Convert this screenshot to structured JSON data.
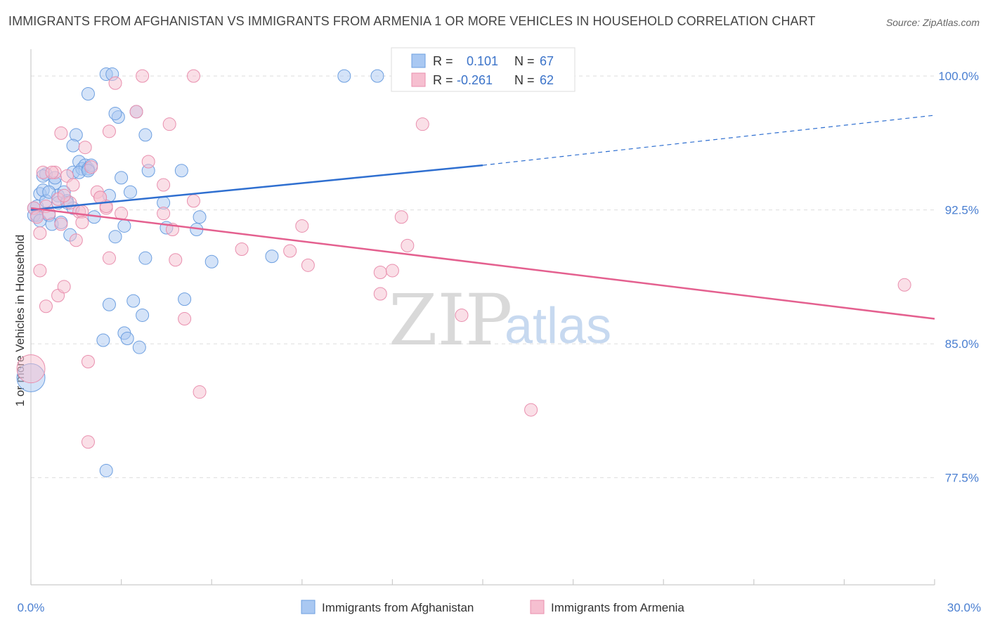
{
  "title": "IMMIGRANTS FROM AFGHANISTAN VS IMMIGRANTS FROM ARMENIA 1 OR MORE VEHICLES IN HOUSEHOLD CORRELATION CHART",
  "source": "Source: ZipAtlas.com",
  "watermark": {
    "zip": "ZIP",
    "atlas": "atlas"
  },
  "colors": {
    "blue_fill": "#a9c8f2",
    "blue_stroke": "#6d9fe0",
    "blue_line": "#2f6fd0",
    "pink_fill": "#f6bfd0",
    "pink_stroke": "#e98fae",
    "pink_line": "#e4608f",
    "grid": "#dddddd",
    "tick_text": "#4a7fd1"
  },
  "stats": [
    {
      "r_label": "R =",
      "r_value": "0.101",
      "n_label": "N =",
      "n_value": "67"
    },
    {
      "r_label": "R =",
      "r_value": "-0.261",
      "n_label": "N =",
      "n_value": "62"
    }
  ],
  "chart_data": {
    "type": "scatter",
    "title": "IMMIGRANTS FROM AFGHANISTAN VS IMMIGRANTS FROM ARMENIA 1 OR MORE VEHICLES IN HOUSEHOLD CORRELATION CHART",
    "xlabel": "",
    "ylabel": "1 or more Vehicles in Household",
    "xlim": [
      0,
      30
    ],
    "ylim": [
      71.5,
      101.5
    ],
    "x_tick_labels": [
      "0.0%",
      "30.0%"
    ],
    "y_ticks": [
      77.5,
      85.0,
      92.5,
      100.0
    ],
    "y_tick_labels": [
      "77.5%",
      "85.0%",
      "92.5%",
      "100.0%"
    ],
    "grid": true,
    "legend_position": "bottom",
    "series": [
      {
        "name": "Immigrants from Afghanistan",
        "color": "#a9c8f2",
        "trend": {
          "x0": 0,
          "y0": 92.5,
          "x1": 15,
          "y1": 95.0,
          "dashed_to_x": 30,
          "dashed_to_y": 97.8
        },
        "points": [
          [
            0.1,
            92.6
          ],
          [
            0.1,
            92.2
          ],
          [
            0.2,
            92.7
          ],
          [
            0.2,
            92.2
          ],
          [
            0.3,
            91.9
          ],
          [
            0.3,
            93.4
          ],
          [
            0.4,
            93.6
          ],
          [
            0.5,
            93.0
          ],
          [
            0.5,
            94.5
          ],
          [
            0.6,
            92.2
          ],
          [
            0.7,
            91.7
          ],
          [
            0.8,
            94.0
          ],
          [
            0.8,
            94.3
          ],
          [
            0.9,
            93.3
          ],
          [
            0.9,
            92.9
          ],
          [
            1.0,
            91.8
          ],
          [
            1.1,
            93.5
          ],
          [
            1.2,
            93.0
          ],
          [
            1.3,
            91.1
          ],
          [
            1.4,
            94.6
          ],
          [
            1.5,
            96.7
          ],
          [
            1.6,
            95.2
          ],
          [
            1.7,
            94.8
          ],
          [
            1.8,
            95.0
          ],
          [
            1.4,
            96.1
          ],
          [
            1.6,
            94.6
          ],
          [
            1.9,
            94.8
          ],
          [
            2.0,
            95.0
          ],
          [
            1.9,
            99.0
          ],
          [
            2.5,
            100.1
          ],
          [
            2.7,
            100.1
          ],
          [
            2.9,
            97.7
          ],
          [
            2.8,
            97.9
          ],
          [
            3.0,
            94.3
          ],
          [
            3.1,
            91.6
          ],
          [
            2.8,
            91.0
          ],
          [
            3.3,
            93.5
          ],
          [
            3.5,
            98.0
          ],
          [
            3.8,
            96.7
          ],
          [
            3.9,
            94.7
          ],
          [
            4.4,
            92.9
          ],
          [
            4.5,
            91.5
          ],
          [
            5.0,
            94.7
          ],
          [
            5.6,
            92.1
          ],
          [
            5.5,
            91.4
          ],
          [
            3.8,
            89.8
          ],
          [
            6.0,
            89.6
          ],
          [
            8.0,
            89.9
          ],
          [
            2.6,
            93.3
          ],
          [
            3.1,
            85.6
          ],
          [
            3.2,
            85.3
          ],
          [
            2.4,
            85.2
          ],
          [
            3.6,
            84.8
          ],
          [
            2.6,
            87.2
          ],
          [
            3.4,
            87.4
          ],
          [
            3.7,
            86.6
          ],
          [
            5.1,
            87.5
          ],
          [
            2.5,
            77.9
          ],
          [
            10.4,
            100.0
          ],
          [
            11.5,
            100.0
          ],
          [
            1.4,
            92.6
          ],
          [
            2.1,
            92.1
          ],
          [
            0.6,
            93.5
          ],
          [
            1.2,
            92.9
          ],
          [
            0.4,
            94.4
          ],
          [
            1.9,
            94.7
          ],
          [
            0.0,
            83.1
          ]
        ]
      },
      {
        "name": "Immigrants from Armenia",
        "color": "#f6bfd0",
        "trend": {
          "x0": 0,
          "y0": 92.6,
          "x1": 30,
          "y1": 86.4
        },
        "points": [
          [
            0.1,
            92.6
          ],
          [
            0.2,
            92.1
          ],
          [
            0.3,
            91.2
          ],
          [
            0.3,
            89.1
          ],
          [
            0.4,
            94.6
          ],
          [
            0.5,
            92.7
          ],
          [
            0.5,
            87.1
          ],
          [
            0.6,
            92.3
          ],
          [
            0.8,
            94.6
          ],
          [
            0.9,
            93.1
          ],
          [
            0.9,
            87.7
          ],
          [
            1.0,
            96.8
          ],
          [
            1.0,
            91.7
          ],
          [
            1.1,
            88.2
          ],
          [
            1.2,
            94.4
          ],
          [
            1.3,
            92.9
          ],
          [
            1.4,
            93.9
          ],
          [
            1.5,
            90.8
          ],
          [
            1.6,
            92.4
          ],
          [
            1.7,
            92.4
          ],
          [
            1.8,
            96.0
          ],
          [
            2.0,
            94.9
          ],
          [
            2.2,
            93.5
          ],
          [
            2.3,
            93.2
          ],
          [
            2.5,
            92.6
          ],
          [
            2.6,
            96.9
          ],
          [
            2.8,
            99.6
          ],
          [
            3.0,
            92.3
          ],
          [
            3.5,
            98.0
          ],
          [
            3.7,
            100.0
          ],
          [
            3.9,
            95.2
          ],
          [
            4.4,
            93.9
          ],
          [
            4.4,
            92.3
          ],
          [
            4.6,
            97.3
          ],
          [
            4.7,
            91.4
          ],
          [
            4.8,
            89.7
          ],
          [
            5.1,
            86.4
          ],
          [
            5.4,
            93.0
          ],
          [
            5.4,
            100.0
          ],
          [
            5.6,
            82.3
          ],
          [
            7.0,
            90.3
          ],
          [
            8.6,
            90.2
          ],
          [
            9.0,
            91.6
          ],
          [
            9.2,
            89.4
          ],
          [
            11.6,
            89.0
          ],
          [
            11.6,
            87.8
          ],
          [
            12.0,
            89.1
          ],
          [
            12.3,
            92.1
          ],
          [
            12.5,
            90.5
          ],
          [
            13.0,
            97.3
          ],
          [
            14.3,
            86.6
          ],
          [
            16.6,
            81.3
          ],
          [
            29.0,
            88.3
          ],
          [
            1.9,
            79.5
          ],
          [
            1.9,
            84.0
          ],
          [
            2.6,
            89.8
          ],
          [
            2.5,
            92.7
          ],
          [
            1.1,
            93.3
          ],
          [
            1.7,
            91.8
          ],
          [
            0.7,
            94.6
          ],
          [
            2.3,
            93.2
          ],
          [
            0.0,
            83.6
          ]
        ]
      }
    ]
  }
}
